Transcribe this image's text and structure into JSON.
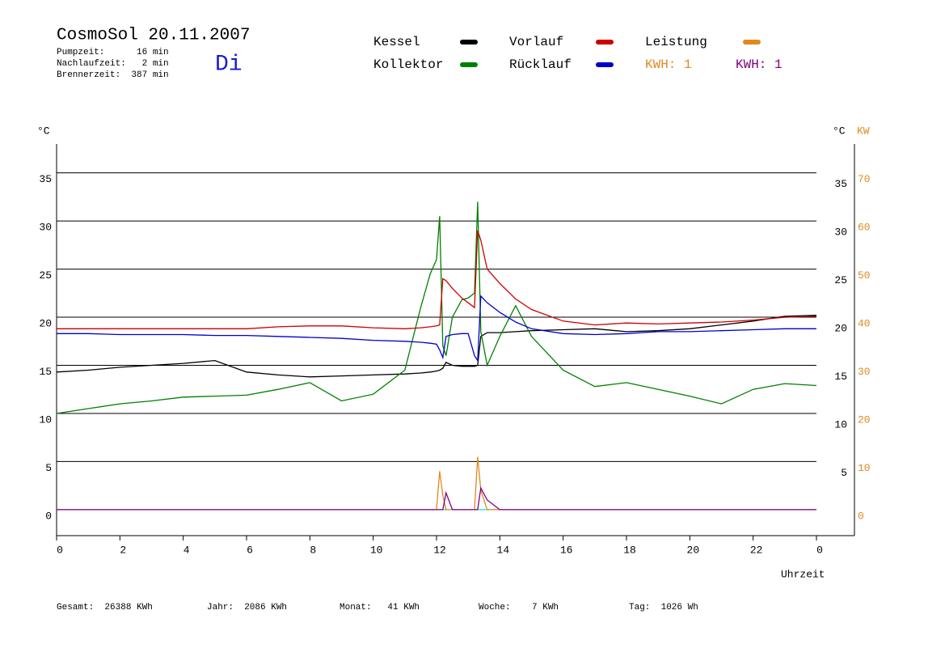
{
  "chart_data": {
    "type": "line",
    "title": "CosmoSol 20.11.2007",
    "weekday": "Di",
    "info": [
      "Pumpzeit:      16 min",
      "Nachlaufzeit:   2 min",
      "Brennerzeit:  387 min"
    ],
    "y_label": "°C",
    "y_right_label": "°C",
    "y2_label": "KW",
    "x_label": "Uhrzeit",
    "annotations": [
      {
        "text": "KWH: 1",
        "color": "#e08a1e"
      }
    ],
    "footer": [
      "Gesamt:  26388 KWh",
      "Jahr:  2086 KWh",
      "Monat:   41 KWh",
      "Woche:    7 KWh",
      "Tag:  1026 Wh"
    ],
    "x": [
      0,
      1,
      2,
      3,
      4,
      5,
      6,
      7,
      8,
      9,
      10,
      11,
      11.5,
      11.8,
      12.0,
      12.1,
      12.2,
      12.3,
      12.5,
      12.8,
      13.0,
      13.2,
      13.3,
      13.4,
      13.6,
      14.0,
      14.5,
      15,
      16,
      17,
      18,
      19,
      20,
      21,
      22,
      23,
      24
    ],
    "series": [
      {
        "color": "#00e0e0",
        "values": [
          0,
          0,
          0,
          0,
          0,
          0,
          0,
          0,
          0,
          0,
          0,
          0,
          0,
          0,
          0,
          0,
          0,
          0,
          0,
          0,
          0,
          0,
          0,
          0,
          0,
          0,
          0,
          0,
          0,
          0,
          0,
          0,
          0,
          0,
          0,
          0,
          0
        ]
      },
      {
        "name": "Kessel",
        "color": "#000000",
        "values": [
          14.3,
          14.5,
          14.8,
          15.0,
          15.2,
          15.5,
          14.3,
          14.0,
          13.8,
          13.9,
          14.0,
          14.1,
          14.2,
          14.3,
          14.4,
          14.5,
          14.7,
          15.3,
          15.0,
          14.9,
          14.9,
          14.9,
          15.0,
          18.0,
          18.4,
          18.4,
          18.5,
          18.6,
          18.7,
          18.8,
          18.5,
          18.6,
          18.8,
          19.2,
          19.6,
          20.1,
          20.2
        ]
      },
      {
        "name": "Kollektor",
        "color": "#008000",
        "values": [
          10.0,
          10.5,
          11.0,
          11.3,
          11.7,
          11.8,
          11.9,
          12.5,
          13.2,
          11.3,
          12.0,
          14.5,
          21.0,
          24.5,
          26.0,
          30.5,
          17.0,
          16.0,
          20.0,
          21.8,
          22.0,
          22.5,
          32.0,
          18.5,
          15.0,
          18.0,
          21.2,
          18.0,
          14.5,
          12.8,
          13.2,
          12.5,
          11.8,
          11.0,
          12.5,
          13.1,
          12.9
        ]
      },
      {
        "name": "Vorlauf",
        "color": "#cc0000",
        "values": [
          18.8,
          18.8,
          18.8,
          18.8,
          18.8,
          18.8,
          18.8,
          19.0,
          19.1,
          19.1,
          18.9,
          18.8,
          18.9,
          19.0,
          19.1,
          19.2,
          24.0,
          23.8,
          23.0,
          22.0,
          21.5,
          21.0,
          29.0,
          28.0,
          25.0,
          23.5,
          21.9,
          20.8,
          19.6,
          19.2,
          19.4,
          19.3,
          19.4,
          19.5,
          19.7,
          20.0,
          20.1
        ]
      },
      {
        "name": "Rücklauf",
        "color": "#0000cc",
        "values": [
          18.3,
          18.3,
          18.2,
          18.2,
          18.2,
          18.1,
          18.1,
          18.0,
          17.9,
          17.8,
          17.6,
          17.5,
          17.4,
          17.3,
          17.2,
          16.6,
          15.8,
          18.0,
          18.2,
          18.3,
          18.3,
          16.0,
          15.5,
          22.2,
          21.5,
          20.5,
          19.5,
          18.8,
          18.3,
          18.2,
          18.3,
          18.5,
          18.5,
          18.6,
          18.7,
          18.8,
          18.8
        ]
      },
      {
        "name": "Leistung",
        "color": "#e08a1e",
        "axis": "y2",
        "values": [
          0,
          0,
          0,
          0,
          0,
          0,
          0,
          0,
          0,
          0,
          0,
          0,
          0,
          0,
          0,
          8,
          3,
          0,
          0,
          0,
          0,
          0,
          11,
          4,
          0,
          0,
          0,
          0,
          0,
          0,
          0,
          0,
          0,
          0,
          0,
          0,
          0
        ]
      },
      {
        "name": "KWH: 1",
        "color": "#800080",
        "axis": "y2",
        "values": [
          0,
          0,
          0,
          0,
          0,
          0,
          0,
          0,
          0,
          0,
          0,
          0,
          0,
          0,
          0,
          0,
          0,
          3.5,
          0,
          0,
          0,
          0,
          0,
          4.5,
          2,
          0,
          0,
          0,
          0,
          0,
          0,
          0,
          0,
          0,
          0,
          0,
          0
        ]
      }
    ],
    "xlim": [
      0,
      25.2
    ],
    "xticks": [
      0,
      2,
      4,
      6,
      8,
      10,
      12,
      14,
      16,
      18,
      20,
      22,
      {
        "value": 24,
        "label": "0"
      }
    ],
    "ylim": [
      -2.7,
      38
    ],
    "yticks": [
      0,
      5,
      10,
      15,
      20,
      25,
      30,
      35
    ],
    "yticks_right": [
      5,
      10,
      15,
      20,
      25,
      30,
      35
    ],
    "y2lim": [
      -5.4,
      76
    ],
    "y2ticks": [
      0,
      10,
      20,
      30,
      40,
      50,
      60,
      70
    ],
    "y2_color": "#e08a1e",
    "grid": true
  }
}
